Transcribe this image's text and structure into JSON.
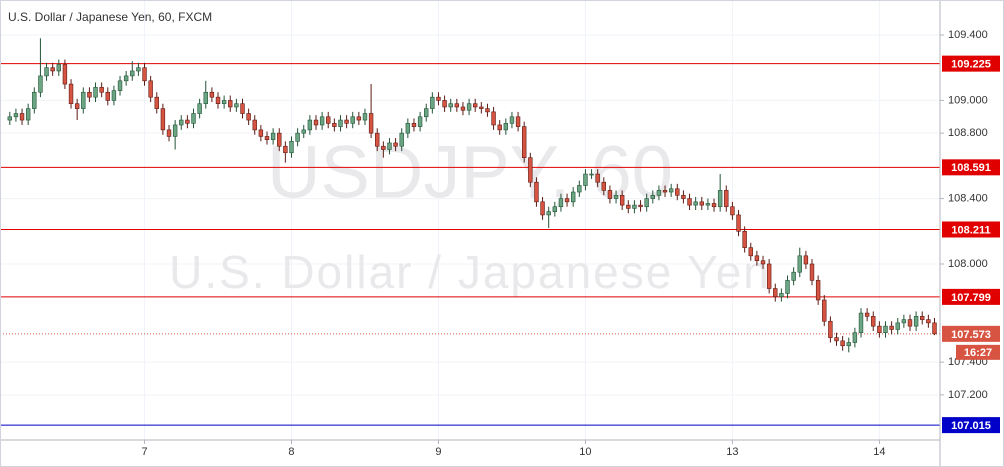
{
  "chart_data": {
    "type": "candlestick",
    "title": "U.S. Dollar / Japanese Yen, 60, FXCM",
    "watermark": "USDJPY, 60",
    "watermark_subtitle": "U.S. Dollar / Japanese Yen",
    "up_color": "#6ba583",
    "down_color": "#d75442",
    "up_border": "#225437",
    "down_border": "#5b1a13",
    "ylim": [
      106.924,
      109.614
    ],
    "yticks": [
      {
        "value": 107.2,
        "label": "107.200"
      },
      {
        "value": 107.4,
        "label": "107.400"
      },
      {
        "value": 108.0,
        "label": "108.000"
      },
      {
        "value": 108.4,
        "label": "108.400"
      },
      {
        "value": 108.8,
        "label": "108.800"
      },
      {
        "value": 109.0,
        "label": "109.000"
      },
      {
        "value": 109.4,
        "label": "109.400"
      }
    ],
    "xlim": [
      -1.6,
      151.9
    ],
    "xticks": [
      {
        "value": 22,
        "label": "7"
      },
      {
        "value": 46,
        "label": "8"
      },
      {
        "value": 70,
        "label": "9"
      },
      {
        "value": 94,
        "label": "10"
      },
      {
        "value": 118,
        "label": "13"
      },
      {
        "value": 142,
        "label": "14"
      }
    ],
    "grid": true,
    "levels": [
      {
        "value": 109.225,
        "color": "#e00000"
      },
      {
        "value": 108.591,
        "color": "#e00000"
      },
      {
        "value": 108.211,
        "color": "#e00000"
      },
      {
        "value": 107.799,
        "color": "#e00000"
      },
      {
        "value": 107.015,
        "color": "#0000c8"
      }
    ],
    "last_price": 107.573,
    "last_color": "#d75442",
    "countdown": "16:27",
    "ohlc": [
      [
        108.88,
        108.93,
        108.85,
        108.9
      ],
      [
        108.9,
        108.95,
        108.87,
        108.92
      ],
      [
        108.92,
        108.95,
        108.85,
        108.88
      ],
      [
        108.88,
        108.98,
        108.85,
        108.95
      ],
      [
        108.95,
        109.08,
        108.92,
        109.05
      ],
      [
        109.05,
        109.38,
        109.02,
        109.15
      ],
      [
        109.15,
        109.23,
        109.12,
        109.2
      ],
      [
        109.2,
        109.23,
        109.15,
        109.18
      ],
      [
        109.18,
        109.25,
        109.15,
        109.22
      ],
      [
        109.22,
        109.25,
        109.07,
        109.1
      ],
      [
        109.1,
        109.13,
        108.95,
        108.98
      ],
      [
        108.98,
        109.01,
        108.88,
        108.95
      ],
      [
        108.95,
        109.08,
        108.92,
        109.05
      ],
      [
        109.05,
        109.08,
        108.99,
        109.02
      ],
      [
        109.02,
        109.11,
        108.99,
        109.08
      ],
      [
        109.08,
        109.11,
        109.02,
        109.05
      ],
      [
        109.05,
        109.08,
        108.97,
        109.0
      ],
      [
        109.0,
        109.09,
        108.97,
        109.06
      ],
      [
        109.06,
        109.15,
        109.03,
        109.12
      ],
      [
        109.12,
        109.18,
        109.09,
        109.15
      ],
      [
        109.15,
        109.24,
        109.12,
        109.18
      ],
      [
        109.18,
        109.23,
        109.15,
        109.2
      ],
      [
        109.2,
        109.23,
        109.09,
        109.12
      ],
      [
        109.12,
        109.15,
        108.99,
        109.02
      ],
      [
        109.02,
        109.05,
        108.92,
        108.95
      ],
      [
        108.95,
        108.98,
        108.79,
        108.82
      ],
      [
        108.82,
        108.85,
        108.75,
        108.78
      ],
      [
        108.78,
        108.88,
        108.7,
        108.85
      ],
      [
        108.85,
        108.91,
        108.82,
        108.88
      ],
      [
        108.88,
        108.91,
        108.83,
        108.86
      ],
      [
        108.86,
        108.95,
        108.83,
        108.92
      ],
      [
        108.92,
        109.01,
        108.89,
        108.98
      ],
      [
        108.98,
        109.12,
        108.95,
        109.05
      ],
      [
        109.05,
        109.08,
        108.99,
        109.02
      ],
      [
        109.02,
        109.05,
        108.95,
        108.98
      ],
      [
        108.98,
        109.03,
        108.95,
        109.0
      ],
      [
        109.0,
        109.03,
        108.93,
        108.96
      ],
      [
        108.96,
        109.01,
        108.93,
        108.98
      ],
      [
        108.98,
        109.01,
        108.89,
        108.92
      ],
      [
        108.92,
        108.95,
        108.85,
        108.88
      ],
      [
        108.88,
        108.91,
        108.79,
        108.82
      ],
      [
        108.82,
        108.85,
        108.75,
        108.78
      ],
      [
        108.78,
        108.81,
        108.73,
        108.76
      ],
      [
        108.76,
        108.83,
        108.73,
        108.8
      ],
      [
        108.8,
        108.83,
        108.69,
        108.72
      ],
      [
        108.72,
        108.75,
        108.62,
        108.68
      ],
      [
        108.68,
        108.78,
        108.65,
        108.75
      ],
      [
        108.75,
        108.83,
        108.72,
        108.8
      ],
      [
        108.8,
        108.85,
        108.77,
        108.82
      ],
      [
        108.82,
        108.91,
        108.79,
        108.88
      ],
      [
        108.88,
        108.91,
        108.82,
        108.85
      ],
      [
        108.85,
        108.93,
        108.82,
        108.9
      ],
      [
        108.9,
        108.93,
        108.83,
        108.86
      ],
      [
        108.86,
        108.89,
        108.81,
        108.84
      ],
      [
        108.84,
        108.91,
        108.81,
        108.88
      ],
      [
        108.88,
        108.91,
        108.83,
        108.86
      ],
      [
        108.86,
        108.93,
        108.83,
        108.9
      ],
      [
        108.9,
        108.93,
        108.85,
        108.88
      ],
      [
        108.88,
        108.95,
        108.85,
        108.92
      ],
      [
        108.92,
        109.1,
        108.77,
        108.8
      ],
      [
        108.8,
        108.83,
        108.69,
        108.72
      ],
      [
        108.72,
        108.75,
        108.65,
        108.7
      ],
      [
        108.7,
        108.77,
        108.67,
        108.74
      ],
      [
        108.74,
        108.77,
        108.69,
        108.72
      ],
      [
        108.72,
        108.83,
        108.69,
        108.8
      ],
      [
        108.8,
        108.89,
        108.77,
        108.86
      ],
      [
        108.86,
        108.89,
        108.81,
        108.84
      ],
      [
        108.84,
        108.93,
        108.81,
        108.9
      ],
      [
        108.9,
        108.98,
        108.87,
        108.95
      ],
      [
        108.95,
        109.05,
        108.92,
        109.02
      ],
      [
        109.02,
        109.05,
        108.97,
        109.0
      ],
      [
        109.0,
        109.03,
        108.93,
        108.96
      ],
      [
        108.96,
        109.01,
        108.93,
        108.98
      ],
      [
        108.98,
        109.01,
        108.93,
        108.96
      ],
      [
        108.96,
        108.99,
        108.91,
        108.94
      ],
      [
        108.94,
        109.01,
        108.91,
        108.98
      ],
      [
        108.98,
        109.01,
        108.93,
        108.96
      ],
      [
        108.96,
        108.99,
        108.92,
        108.95
      ],
      [
        108.95,
        108.98,
        108.9,
        108.93
      ],
      [
        108.93,
        108.96,
        108.82,
        108.85
      ],
      [
        108.85,
        108.88,
        108.79,
        108.82
      ],
      [
        108.82,
        108.89,
        108.79,
        108.86
      ],
      [
        108.86,
        108.93,
        108.83,
        108.9
      ],
      [
        108.9,
        108.93,
        108.81,
        108.84
      ],
      [
        108.84,
        108.87,
        108.62,
        108.65
      ],
      [
        108.65,
        108.68,
        108.47,
        108.5
      ],
      [
        108.5,
        108.53,
        108.35,
        108.38
      ],
      [
        108.38,
        108.41,
        108.27,
        108.3
      ],
      [
        108.3,
        108.35,
        108.22,
        108.32
      ],
      [
        108.32,
        108.38,
        108.29,
        108.35
      ],
      [
        108.35,
        108.43,
        108.32,
        108.4
      ],
      [
        108.4,
        108.43,
        108.35,
        108.38
      ],
      [
        108.38,
        108.47,
        108.35,
        108.44
      ],
      [
        108.44,
        108.51,
        108.41,
        108.48
      ],
      [
        108.48,
        108.58,
        108.45,
        108.55
      ],
      [
        108.55,
        108.58,
        108.52,
        108.55
      ],
      [
        108.55,
        108.58,
        108.47,
        108.5
      ],
      [
        108.5,
        108.53,
        108.42,
        108.45
      ],
      [
        108.45,
        108.48,
        108.37,
        108.4
      ],
      [
        108.4,
        108.45,
        108.37,
        108.42
      ],
      [
        108.42,
        108.45,
        108.33,
        108.36
      ],
      [
        108.36,
        108.39,
        108.31,
        108.34
      ],
      [
        108.34,
        108.39,
        108.31,
        108.36
      ],
      [
        108.36,
        108.39,
        108.32,
        108.35
      ],
      [
        108.35,
        108.43,
        108.32,
        108.4
      ],
      [
        108.4,
        108.45,
        108.37,
        108.42
      ],
      [
        108.42,
        108.48,
        108.39,
        108.45
      ],
      [
        108.45,
        108.48,
        108.41,
        108.44
      ],
      [
        108.44,
        108.49,
        108.41,
        108.46
      ],
      [
        108.46,
        108.49,
        108.39,
        108.42
      ],
      [
        108.42,
        108.45,
        108.37,
        108.4
      ],
      [
        108.4,
        108.43,
        108.33,
        108.36
      ],
      [
        108.36,
        108.41,
        108.33,
        108.38
      ],
      [
        108.38,
        108.41,
        108.33,
        108.36
      ],
      [
        108.36,
        108.4,
        108.33,
        108.37
      ],
      [
        108.37,
        108.4,
        108.32,
        108.35
      ],
      [
        108.35,
        108.55,
        108.32,
        108.45
      ],
      [
        108.45,
        108.48,
        108.32,
        108.35
      ],
      [
        108.35,
        108.38,
        108.27,
        108.3
      ],
      [
        108.3,
        108.33,
        108.17,
        108.2
      ],
      [
        108.2,
        108.23,
        108.07,
        108.1
      ],
      [
        108.1,
        108.13,
        108.02,
        108.05
      ],
      [
        108.05,
        108.08,
        107.99,
        108.02
      ],
      [
        108.02,
        108.05,
        107.97,
        108.0
      ],
      [
        108.0,
        108.03,
        107.82,
        107.85
      ],
      [
        107.85,
        107.88,
        107.77,
        107.8
      ],
      [
        107.8,
        107.85,
        107.77,
        107.82
      ],
      [
        107.82,
        107.93,
        107.79,
        107.9
      ],
      [
        107.9,
        107.98,
        107.87,
        107.95
      ],
      [
        107.95,
        108.1,
        107.92,
        108.05
      ],
      [
        108.05,
        108.08,
        107.97,
        108.0
      ],
      [
        108.0,
        108.03,
        107.87,
        107.9
      ],
      [
        107.9,
        107.93,
        107.75,
        107.78
      ],
      [
        107.78,
        107.81,
        107.62,
        107.65
      ],
      [
        107.65,
        107.68,
        107.52,
        107.55
      ],
      [
        107.55,
        107.58,
        107.5,
        107.53
      ],
      [
        107.53,
        107.56,
        107.47,
        107.5
      ],
      [
        107.5,
        107.55,
        107.46,
        107.52
      ],
      [
        107.52,
        107.61,
        107.49,
        107.58
      ],
      [
        107.58,
        107.73,
        107.55,
        107.7
      ],
      [
        107.7,
        107.73,
        107.65,
        107.68
      ],
      [
        107.68,
        107.71,
        107.59,
        107.62
      ],
      [
        107.62,
        107.65,
        107.55,
        107.58
      ],
      [
        107.58,
        107.65,
        107.55,
        107.62
      ],
      [
        107.62,
        107.65,
        107.57,
        107.6
      ],
      [
        107.6,
        107.67,
        107.57,
        107.64
      ],
      [
        107.64,
        107.69,
        107.61,
        107.66
      ],
      [
        107.66,
        107.69,
        107.59,
        107.62
      ],
      [
        107.62,
        107.71,
        107.59,
        107.68
      ],
      [
        107.68,
        107.71,
        107.63,
        107.66
      ],
      [
        107.66,
        107.69,
        107.61,
        107.64
      ],
      [
        107.64,
        107.67,
        107.565,
        107.573
      ]
    ]
  }
}
